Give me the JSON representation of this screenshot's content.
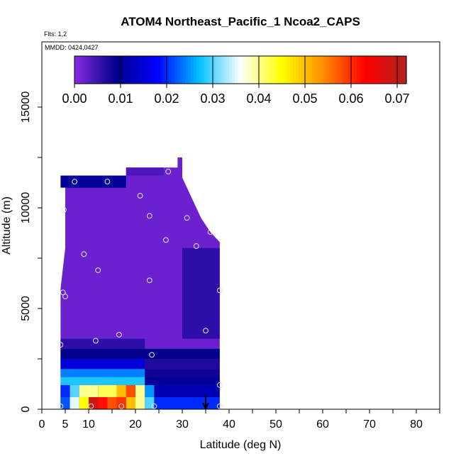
{
  "chart_data": {
    "type": "heatmap",
    "title": "ATOM4 Northeast_Pacific_1 Ncoa2_CAPS",
    "flights_label": "Flts: 1,2",
    "mmdd_label": "MMDD: 0424,0427",
    "xlabel": "Latitude (deg N)",
    "ylabel": "Altitude (m)",
    "xlim": [
      0,
      85
    ],
    "ylim": [
      0,
      17000
    ],
    "x_ticks": [
      0,
      5,
      10,
      20,
      30,
      40,
      50,
      60,
      70,
      80
    ],
    "y_ticks": [
      0,
      5000,
      10000,
      15000
    ],
    "colorbar": {
      "ticks": [
        0.0,
        0.01,
        0.02,
        0.03,
        0.04,
        0.05,
        0.06,
        0.07
      ],
      "tick_labels": [
        "0.00",
        "0.01",
        "0.02",
        "0.03",
        "0.04",
        "0.05",
        "0.06",
        "0.07"
      ],
      "range": [
        0,
        0.072
      ],
      "colors": [
        "#8a2be2",
        "#00008b",
        "#0000ff",
        "#00bfff",
        "#ffffff",
        "#ffff00",
        "#ff8c00",
        "#ff0000",
        "#b22222"
      ]
    },
    "field_value_typical": 0.002,
    "cells": [
      {
        "lat": [
          4,
          6
        ],
        "alt": [
          0,
          600
        ],
        "value": 0.022
      },
      {
        "lat": [
          6,
          8
        ],
        "alt": [
          0,
          600
        ],
        "value": 0.035
      },
      {
        "lat": [
          8,
          10
        ],
        "alt": [
          0,
          600
        ],
        "value": 0.045
      },
      {
        "lat": [
          10,
          12
        ],
        "alt": [
          0,
          600
        ],
        "value": 0.068
      },
      {
        "lat": [
          12,
          14
        ],
        "alt": [
          0,
          600
        ],
        "value": 0.062
      },
      {
        "lat": [
          14,
          16
        ],
        "alt": [
          0,
          600
        ],
        "value": 0.058
      },
      {
        "lat": [
          16,
          18
        ],
        "alt": [
          0,
          600
        ],
        "value": 0.06
      },
      {
        "lat": [
          18,
          20
        ],
        "alt": [
          0,
          600
        ],
        "value": 0.05
      },
      {
        "lat": [
          20,
          22
        ],
        "alt": [
          0,
          600
        ],
        "value": 0.04
      },
      {
        "lat": [
          22,
          24
        ],
        "alt": [
          0,
          600
        ],
        "value": 0.03
      },
      {
        "lat": [
          24,
          38
        ],
        "alt": [
          0,
          600
        ],
        "value": 0.02
      },
      {
        "lat": [
          4,
          6
        ],
        "alt": [
          600,
          1200
        ],
        "value": 0.02
      },
      {
        "lat": [
          6,
          8
        ],
        "alt": [
          600,
          1200
        ],
        "value": 0.03
      },
      {
        "lat": [
          8,
          12
        ],
        "alt": [
          600,
          1200
        ],
        "value": 0.04
      },
      {
        "lat": [
          12,
          16
        ],
        "alt": [
          600,
          1200
        ],
        "value": 0.042
      },
      {
        "lat": [
          16,
          18
        ],
        "alt": [
          600,
          1200
        ],
        "value": 0.05
      },
      {
        "lat": [
          18,
          20
        ],
        "alt": [
          600,
          1200
        ],
        "value": 0.058
      },
      {
        "lat": [
          20,
          22
        ],
        "alt": [
          600,
          1200
        ],
        "value": 0.04
      },
      {
        "lat": [
          22,
          24
        ],
        "alt": [
          600,
          1200
        ],
        "value": 0.025
      },
      {
        "lat": [
          24,
          38
        ],
        "alt": [
          600,
          1200
        ],
        "value": 0.012
      },
      {
        "lat": [
          4,
          22
        ],
        "alt": [
          1200,
          1600
        ],
        "value": 0.028
      },
      {
        "lat": [
          22,
          38
        ],
        "alt": [
          1200,
          1600
        ],
        "value": 0.01
      },
      {
        "lat": [
          4,
          22
        ],
        "alt": [
          1600,
          2000
        ],
        "value": 0.024
      },
      {
        "lat": [
          22,
          38
        ],
        "alt": [
          1600,
          2000
        ],
        "value": 0.008
      },
      {
        "lat": [
          4,
          22
        ],
        "alt": [
          2000,
          2500
        ],
        "value": 0.015
      },
      {
        "lat": [
          22,
          38
        ],
        "alt": [
          2000,
          2500
        ],
        "value": 0.007
      },
      {
        "lat": [
          4,
          38
        ],
        "alt": [
          2500,
          3000
        ],
        "value": 0.009
      },
      {
        "lat": [
          4,
          22
        ],
        "alt": [
          3000,
          3500
        ],
        "value": 0.006
      },
      {
        "lat": [
          30,
          38
        ],
        "alt": [
          3500,
          8000
        ],
        "value": 0.006
      },
      {
        "lat": [
          4,
          18
        ],
        "alt": [
          11000,
          11600
        ],
        "value": 0.01
      },
      {
        "lat": [
          18,
          26
        ],
        "alt": [
          11600,
          12000
        ],
        "value": 0.004
      }
    ],
    "profile": [
      [
        4,
        0
      ],
      [
        4,
        6000
      ],
      [
        5,
        8000
      ],
      [
        5,
        11600
      ],
      [
        18,
        11600
      ],
      [
        18,
        12000
      ],
      [
        29,
        12000
      ],
      [
        29,
        12500
      ],
      [
        30,
        12500
      ],
      [
        30,
        11500
      ],
      [
        32,
        10500
      ],
      [
        34,
        9500
      ],
      [
        36,
        8800
      ],
      [
        38,
        8300
      ],
      [
        38,
        0
      ]
    ],
    "samples": [
      {
        "lat": 4,
        "alt": 150
      },
      {
        "lat": 10.5,
        "alt": 150
      },
      {
        "lat": 17,
        "alt": 150
      },
      {
        "lat": 24,
        "alt": 150
      },
      {
        "lat": 38,
        "alt": 150
      },
      {
        "lat": 38,
        "alt": 1200
      },
      {
        "lat": 23.5,
        "alt": 2700
      },
      {
        "lat": 4,
        "alt": 3200
      },
      {
        "lat": 11.5,
        "alt": 3400
      },
      {
        "lat": 16.5,
        "alt": 3700
      },
      {
        "lat": 35,
        "alt": 3900
      },
      {
        "lat": 4.5,
        "alt": 5800
      },
      {
        "lat": 5,
        "alt": 5600
      },
      {
        "lat": 38,
        "alt": 5900
      },
      {
        "lat": 23,
        "alt": 6400
      },
      {
        "lat": 12,
        "alt": 6900
      },
      {
        "lat": 9,
        "alt": 7700
      },
      {
        "lat": 33,
        "alt": 8100
      },
      {
        "lat": 26.5,
        "alt": 8400
      },
      {
        "lat": 36,
        "alt": 8800
      },
      {
        "lat": 23,
        "alt": 9600
      },
      {
        "lat": 31,
        "alt": 9500
      },
      {
        "lat": 4.7,
        "alt": 9900
      },
      {
        "lat": 21,
        "alt": 10600
      },
      {
        "lat": 7,
        "alt": 11300
      },
      {
        "lat": 14,
        "alt": 11300
      },
      {
        "lat": 27,
        "alt": 11800
      }
    ],
    "arrow": {
      "lat": 35,
      "alt_from": 700,
      "alt_to": 0
    }
  }
}
